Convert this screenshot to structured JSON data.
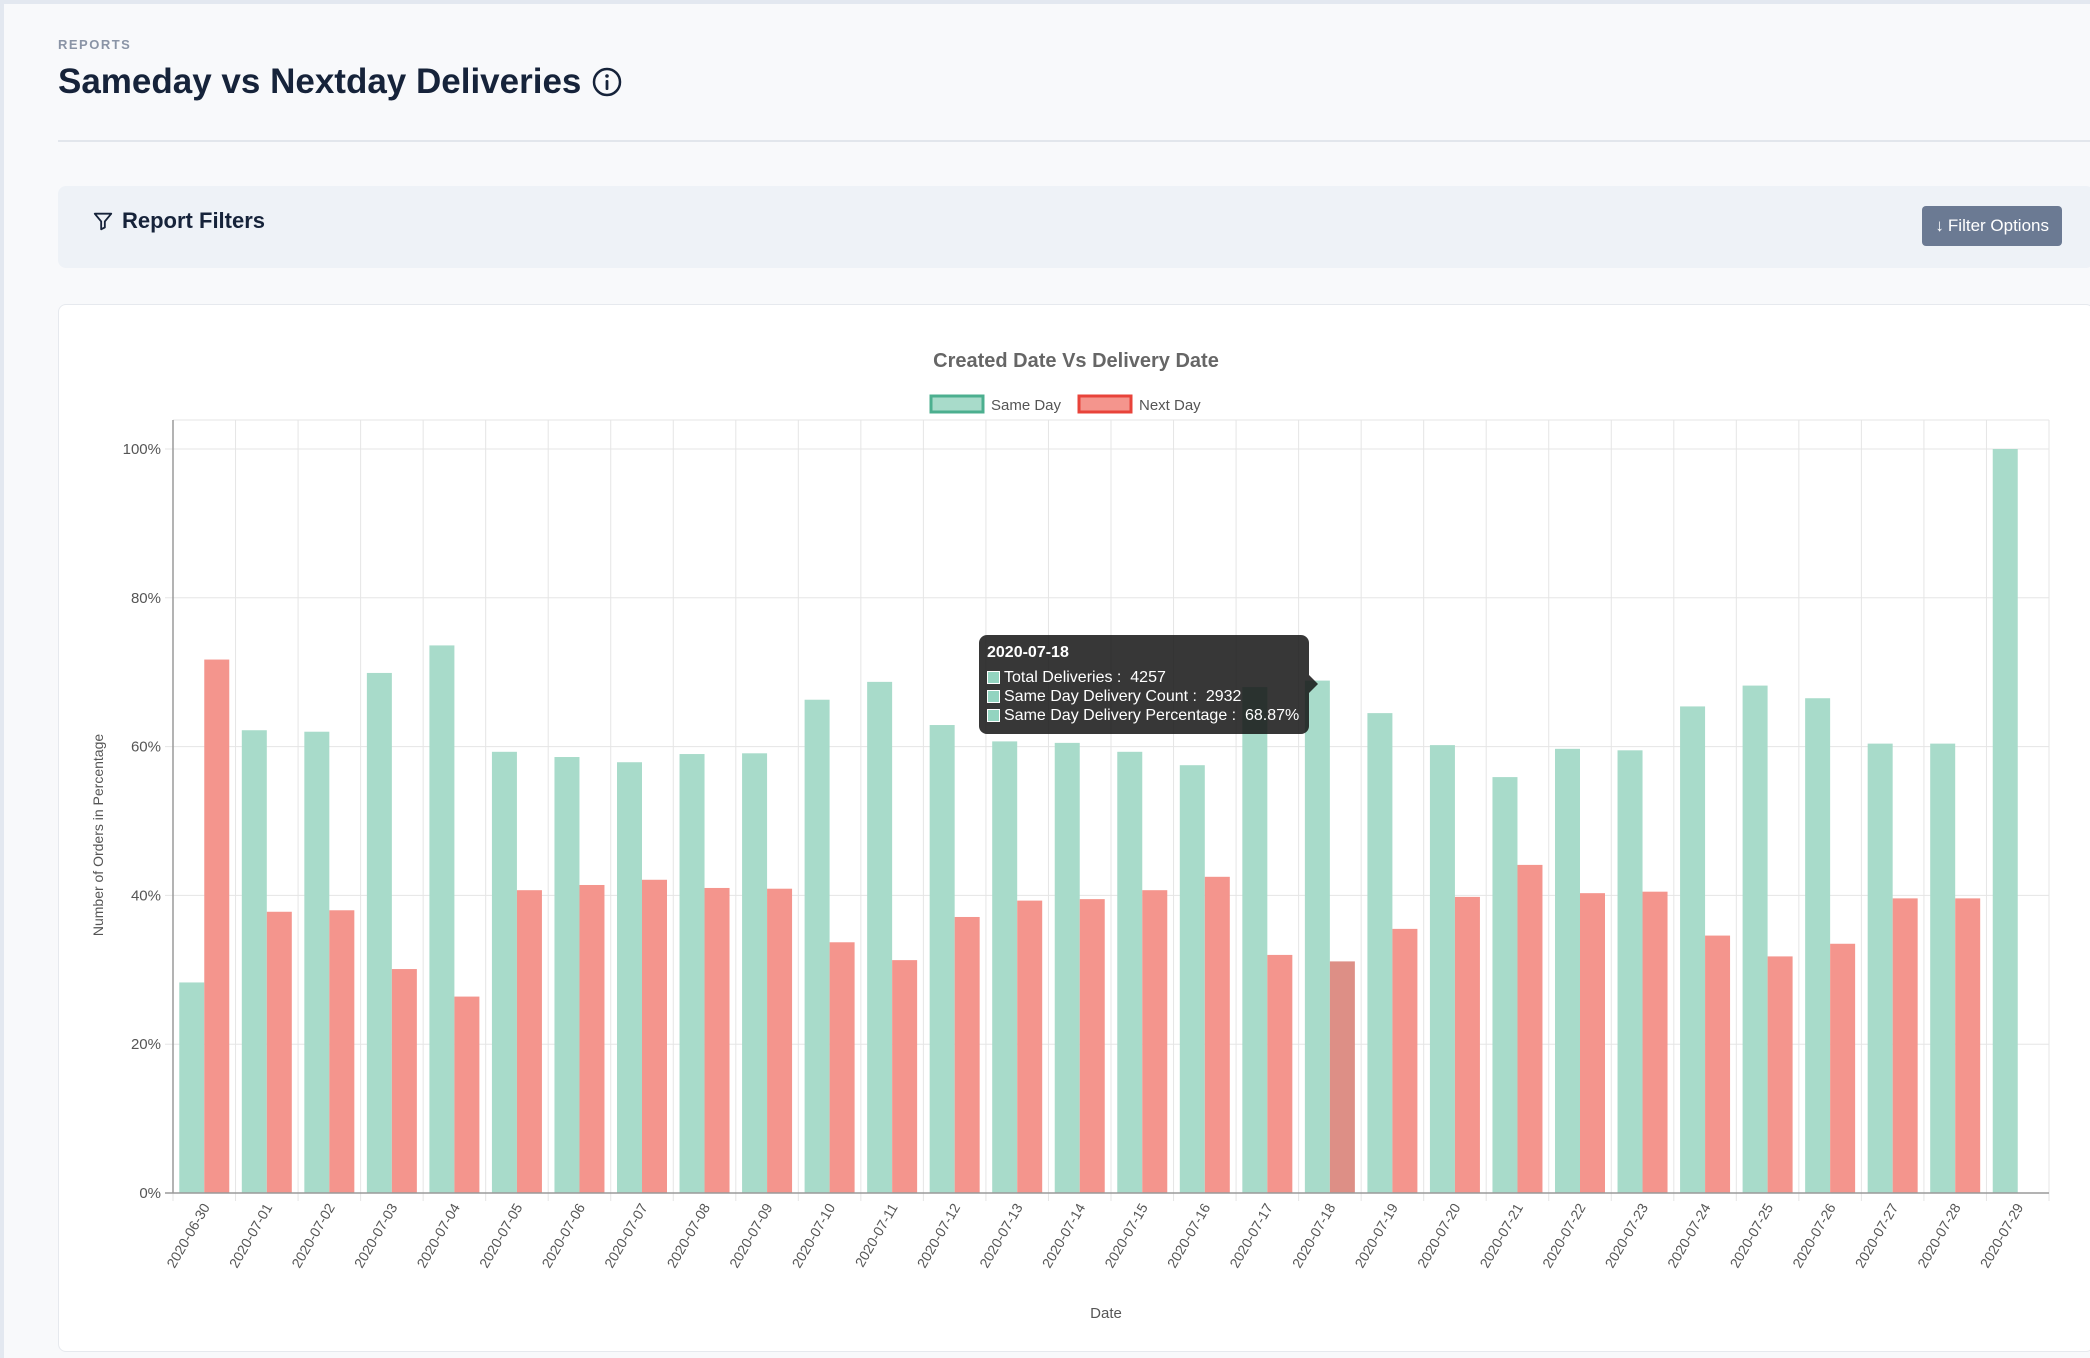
{
  "header": {
    "eyebrow": "REPORTS",
    "title": "Sameday vs Nextday Deliveries"
  },
  "filters": {
    "heading": "Report Filters",
    "button_label": "Filter Options"
  },
  "colors": {
    "same_day_fill": "#a8dbca",
    "same_day_border": "#4caf8f",
    "next_day_fill": "#f4958d",
    "next_day_border": "#e8433a",
    "hover_next_day_fill": "#dd8f86"
  },
  "tooltip": {
    "date": "2020-07-18",
    "lines": [
      {
        "label": "Total Deliveries :",
        "value": "4257"
      },
      {
        "label": "Same Day Delivery Count :",
        "value": "2932"
      },
      {
        "label": "Same Day Delivery Percentage :",
        "value": "68.87%"
      }
    ]
  },
  "chart_data": {
    "type": "bar",
    "title": "Created Date Vs Delivery Date",
    "xlabel": "Date",
    "ylabel": "Number of Orders in Percentage",
    "ylim": [
      0,
      100
    ],
    "yticks": [
      "0%",
      "20%",
      "40%",
      "60%",
      "80%",
      "100%"
    ],
    "grid": true,
    "legend_position": "top-center",
    "categories": [
      "2020-06-30",
      "2020-07-01",
      "2020-07-02",
      "2020-07-03",
      "2020-07-04",
      "2020-07-05",
      "2020-07-06",
      "2020-07-07",
      "2020-07-08",
      "2020-07-09",
      "2020-07-10",
      "2020-07-11",
      "2020-07-12",
      "2020-07-13",
      "2020-07-14",
      "2020-07-15",
      "2020-07-16",
      "2020-07-17",
      "2020-07-18",
      "2020-07-19",
      "2020-07-20",
      "2020-07-21",
      "2020-07-22",
      "2020-07-23",
      "2020-07-24",
      "2020-07-25",
      "2020-07-26",
      "2020-07-27",
      "2020-07-28",
      "2020-07-29"
    ],
    "series": [
      {
        "name": "Same Day",
        "values": [
          28.3,
          62.2,
          62.0,
          69.9,
          73.6,
          59.3,
          58.6,
          57.9,
          59.0,
          59.1,
          66.3,
          68.7,
          62.9,
          60.7,
          60.5,
          59.3,
          57.5,
          68.0,
          68.87,
          64.5,
          60.2,
          55.9,
          59.7,
          59.5,
          65.4,
          68.2,
          66.5,
          60.4,
          60.4,
          100.0
        ]
      },
      {
        "name": "Next Day",
        "values": [
          71.7,
          37.8,
          38.0,
          30.1,
          26.4,
          40.7,
          41.4,
          42.1,
          41.0,
          40.9,
          33.7,
          31.3,
          37.1,
          39.3,
          39.5,
          40.7,
          42.5,
          32.0,
          31.13,
          35.5,
          39.8,
          44.1,
          40.3,
          40.5,
          34.6,
          31.8,
          33.5,
          39.6,
          39.6,
          0
        ]
      }
    ]
  }
}
